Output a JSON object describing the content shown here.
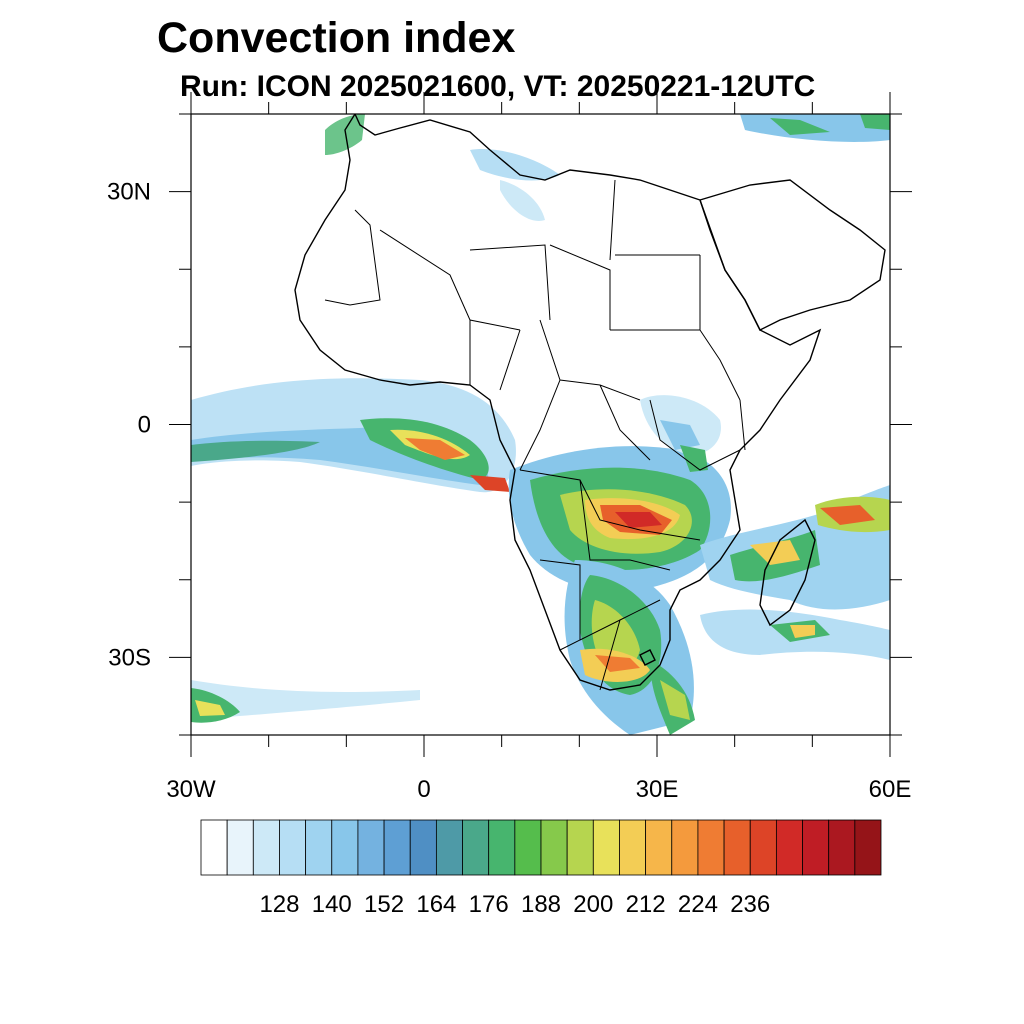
{
  "title": "Convection index",
  "subtitle": "Run: ICON 2025021600,  VT: 20250221-12UTC",
  "map": {
    "lon_range": [
      -30,
      60
    ],
    "lat_range": [
      -40,
      40
    ],
    "lat_ticks": [
      {
        "value": 30,
        "label": "30N"
      },
      {
        "value": 0,
        "label": "0"
      },
      {
        "value": -30,
        "label": "30S"
      }
    ],
    "lon_ticks": [
      {
        "value": -30,
        "label": "30W"
      },
      {
        "value": 0,
        "label": "0"
      },
      {
        "value": 30,
        "label": "30E"
      },
      {
        "value": 60,
        "label": "60E"
      }
    ]
  },
  "colorbar": {
    "colors": [
      "#ffffff",
      "#e8f4fb",
      "#cde9f7",
      "#b6def4",
      "#9fd3f0",
      "#88c6ea",
      "#74b2e0",
      "#5e9fd4",
      "#4f8fc4",
      "#4e9aa7",
      "#4aa88a",
      "#47b56e",
      "#55bd4c",
      "#86c94b",
      "#b6d54f",
      "#e8e15a",
      "#f3cd55",
      "#f6b64a",
      "#f49a3d",
      "#ef7c33",
      "#e7602b",
      "#dd4427",
      "#d12a27",
      "#bf1d25",
      "#ab1820",
      "#951418"
    ],
    "labels": [
      "128",
      "140",
      "152",
      "164",
      "176",
      "188",
      "200",
      "212",
      "224",
      "236"
    ]
  }
}
